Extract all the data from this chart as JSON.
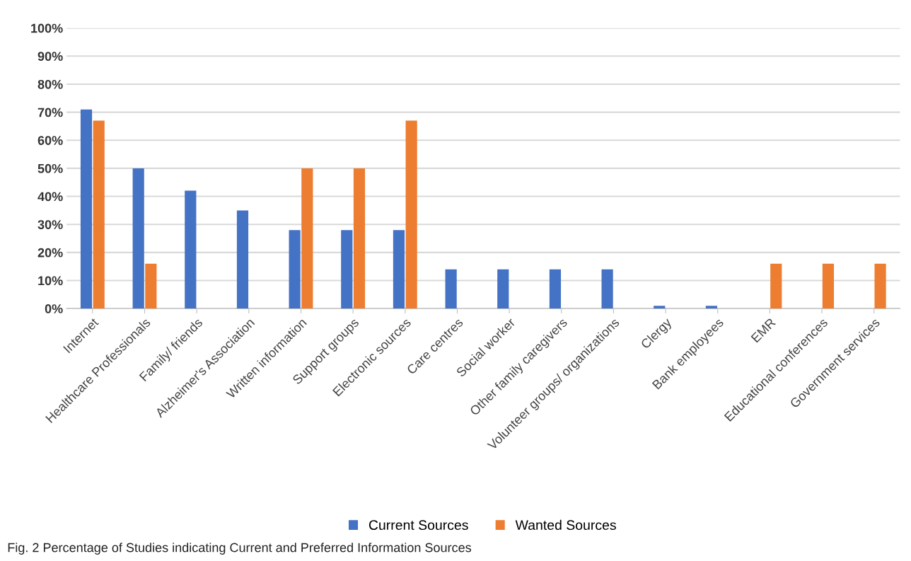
{
  "chart_data": {
    "type": "bar",
    "categories": [
      "Internet",
      "Healthcare Professionals",
      "Family/ friends",
      "Alzheimer's Association",
      "Written information",
      "Support groups",
      "Electronic sources",
      "Care centres",
      "Social worker",
      "Other family caregivers",
      "Volunteer groups/ organizations",
      "Clergy",
      "Bank employees",
      "EMR",
      "Educational conferences",
      "Government services"
    ],
    "series": [
      {
        "name": "Current Sources",
        "color": "#4472c4",
        "values": [
          71,
          50,
          42,
          35,
          28,
          28,
          28,
          14,
          14,
          14,
          14,
          1,
          1,
          0,
          0,
          0
        ]
      },
      {
        "name": "Wanted Sources",
        "color": "#ed7d31",
        "values": [
          67,
          16,
          0,
          0,
          50,
          50,
          67,
          0,
          0,
          0,
          0,
          0,
          0,
          16,
          16,
          16
        ]
      }
    ],
    "ylim": [
      0,
      100
    ],
    "yticks": [
      {
        "value": 0,
        "label": "0%"
      },
      {
        "value": 10,
        "label": "10%"
      },
      {
        "value": 20,
        "label": "20%"
      },
      {
        "value": 30,
        "label": "30%"
      },
      {
        "value": 40,
        "label": "40%"
      },
      {
        "value": 50,
        "label": "50%"
      },
      {
        "value": 60,
        "label": "60%"
      },
      {
        "value": 70,
        "label": "70%"
      },
      {
        "value": 80,
        "label": "80%"
      },
      {
        "value": 90,
        "label": "90%"
      },
      {
        "value": 100,
        "label": "100%"
      }
    ],
    "grid": "y",
    "legend": "bottom",
    "annotations": [
      "Fig. 2 Percentage of Studies indicating Current and Preferred Information Sources"
    ]
  }
}
